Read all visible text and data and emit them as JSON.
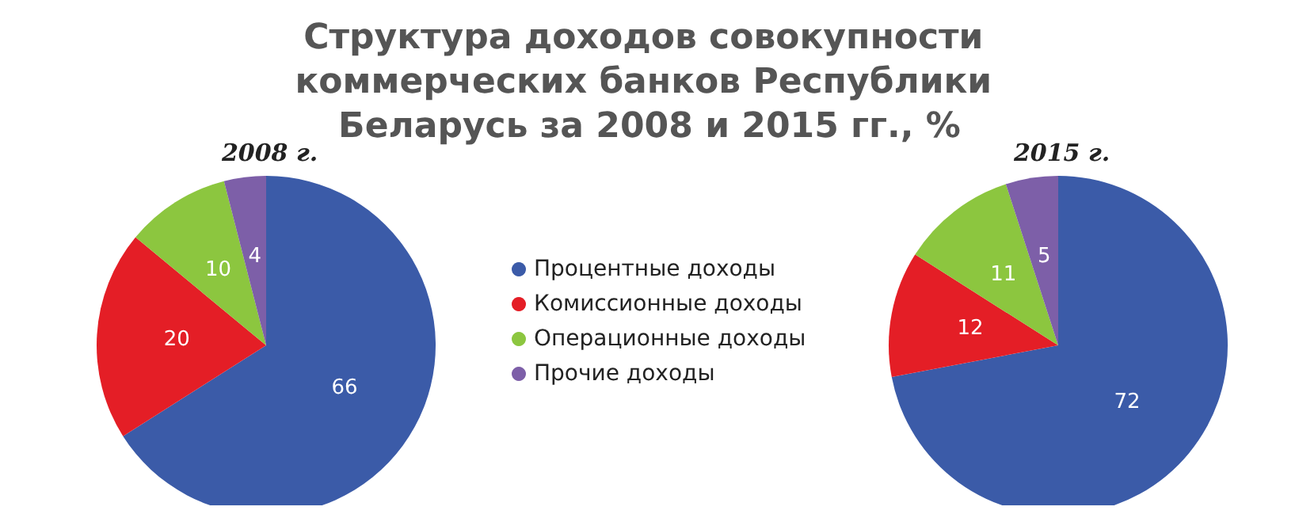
{
  "chart_data": {
    "type": "pie",
    "title": "Структура доходов совокупности коммерческих банков Республики Беларусь за 2008 и 2015 гг., %",
    "categories": [
      "Процентные доходы",
      "Комиссионные доходы",
      "Операционные доходы",
      "Прочие доходы"
    ],
    "colors": [
      "#3b5ba8",
      "#e41e26",
      "#8cc63f",
      "#7d5fa8"
    ],
    "series": [
      {
        "name": "2008 г.",
        "values": [
          66,
          20,
          10,
          4
        ]
      },
      {
        "name": "2015 г.",
        "values": [
          72,
          12,
          11,
          5
        ]
      }
    ],
    "data_labels": true,
    "legend": "center"
  }
}
